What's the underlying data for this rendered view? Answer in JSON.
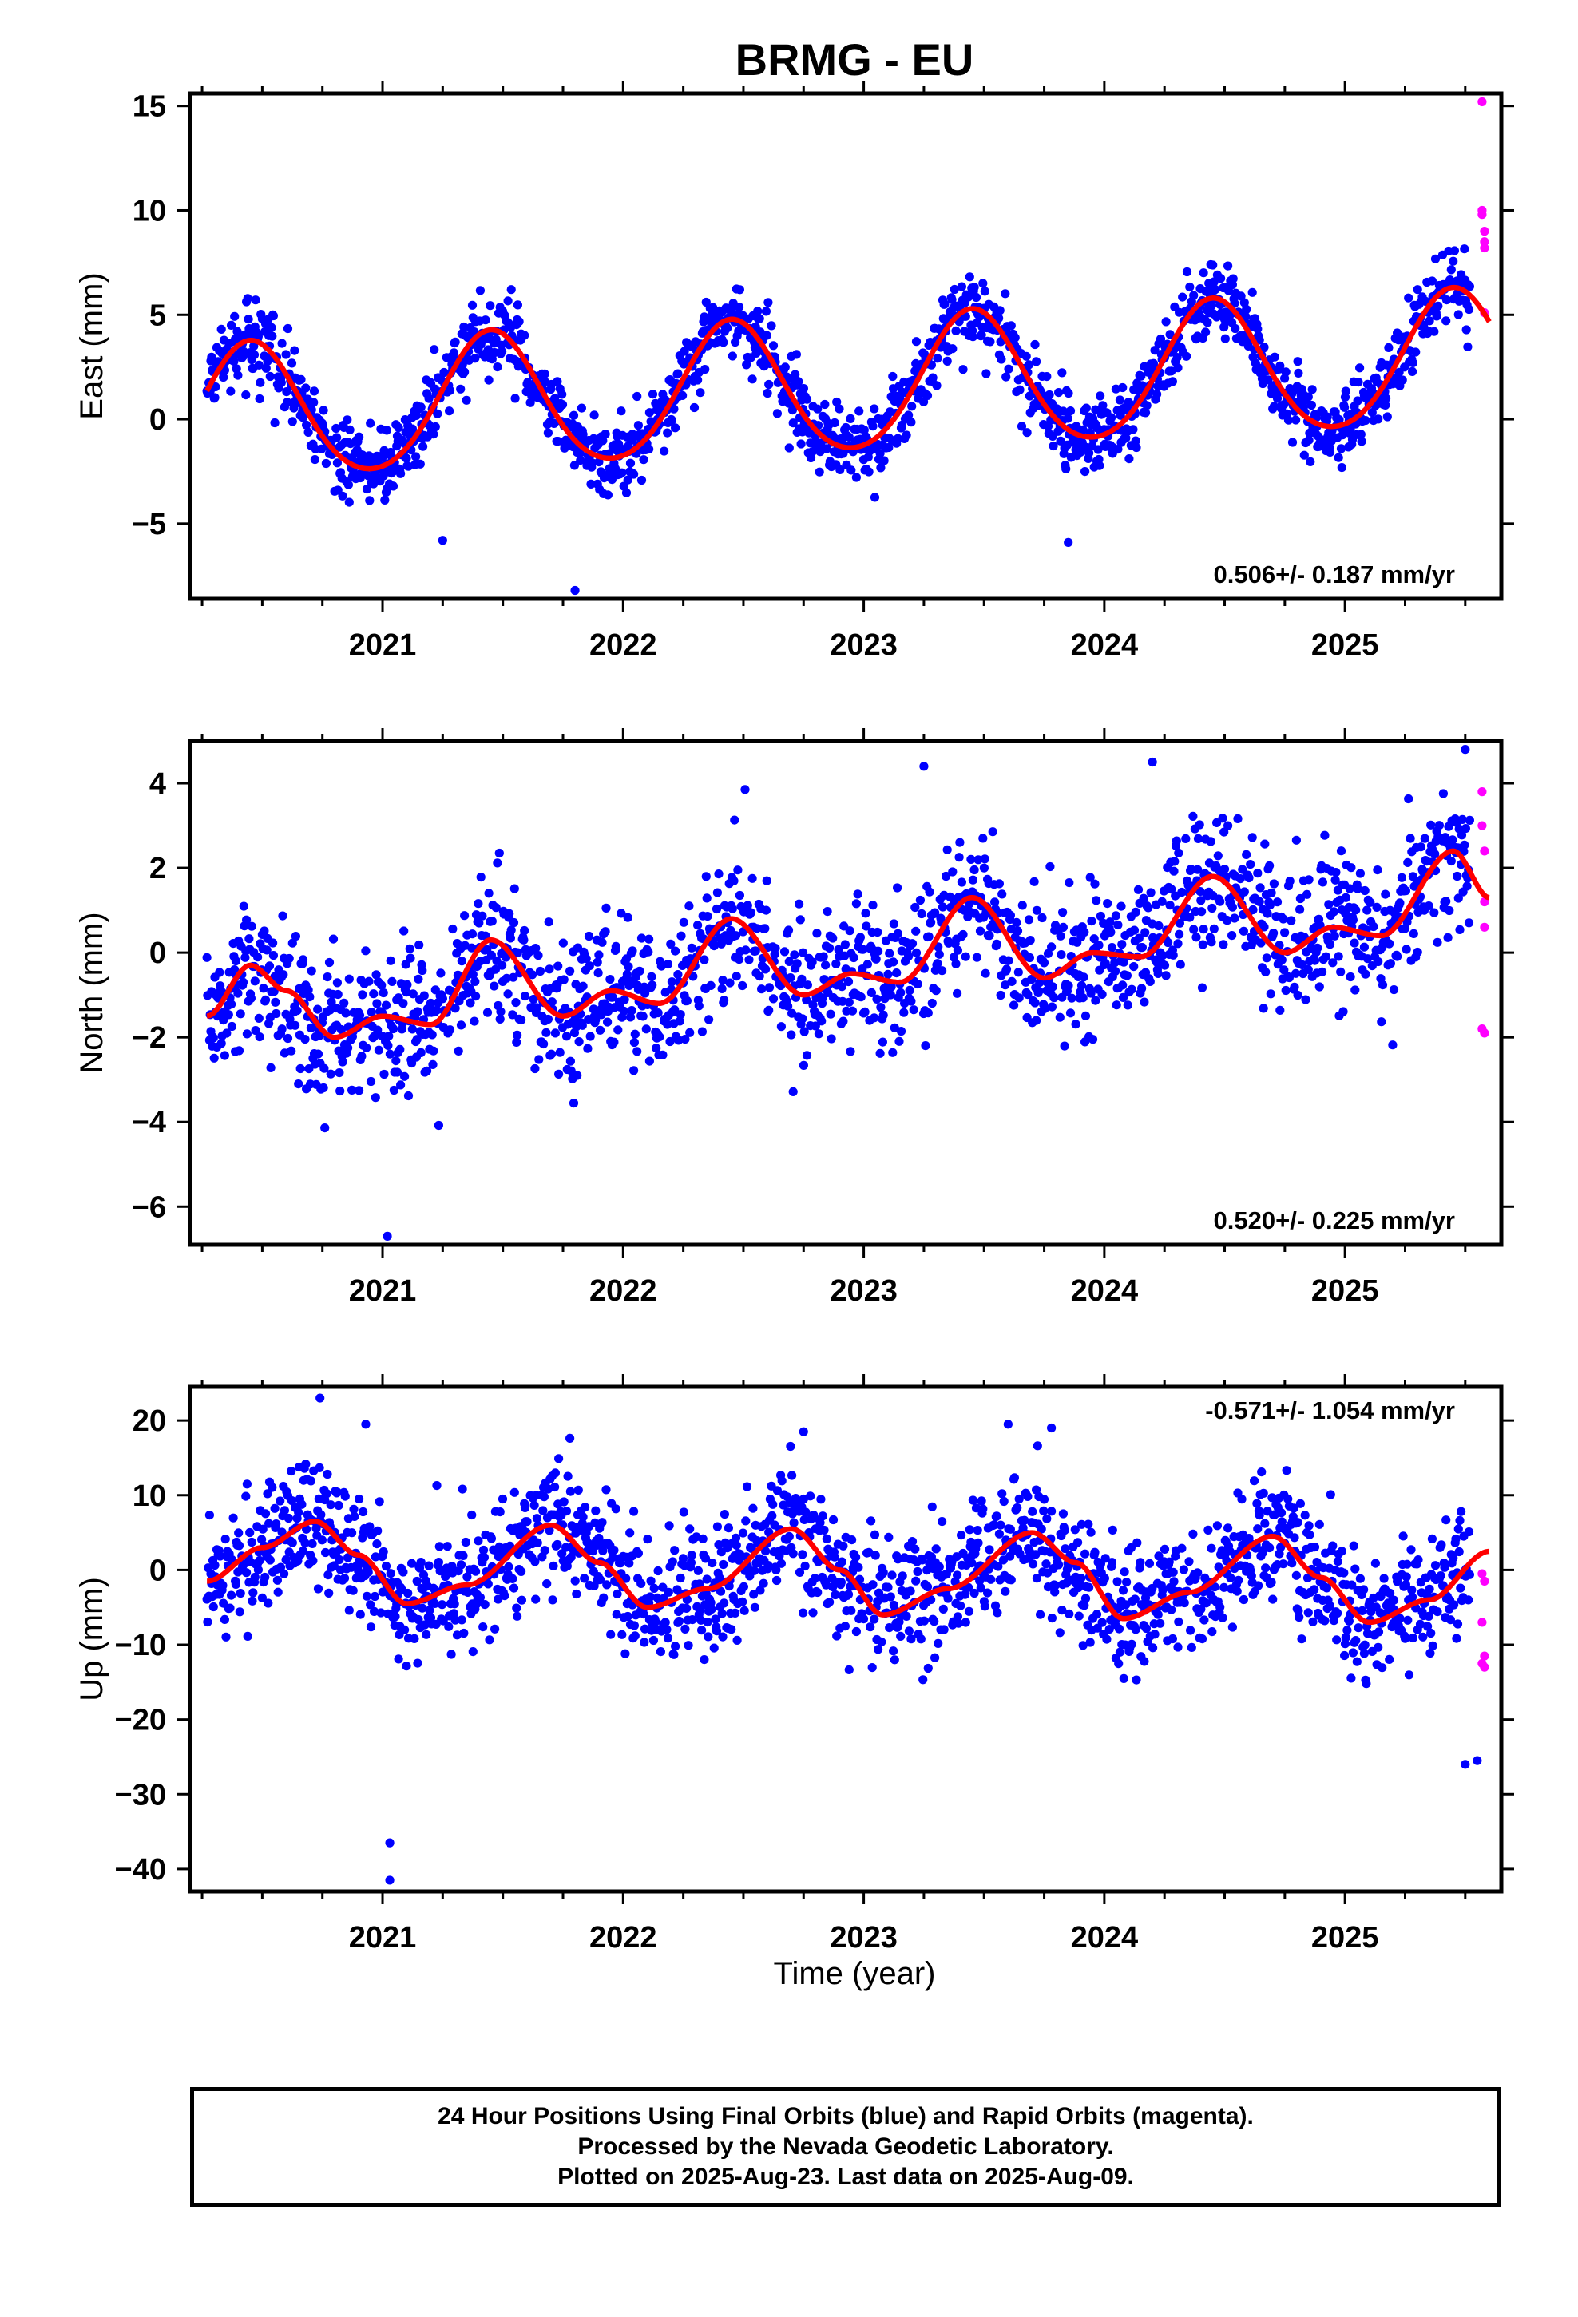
{
  "title": "BRMG - EU",
  "xlabel": "Time (year)",
  "caption": [
    "24 Hour Positions Using Final Orbits (blue) and Rapid Orbits (magenta).",
    "Processed by the Nevada Geodetic Laboratory.",
    "Plotted on 2025-Aug-23. Last data on 2025-Aug-09."
  ],
  "colors": {
    "final_orbits": "#0000ff",
    "rapid_orbits": "#ff00ff",
    "model_fit": "#ff0000",
    "frame": "#000000"
  },
  "chart_data": [
    {
      "type": "scatter",
      "name": "east-panel",
      "ylabel": "East (mm)",
      "rate_label": "0.506+/- 0.187 mm/yr",
      "xlim": [
        2020.2,
        2025.65
      ],
      "ylim": [
        -8.6,
        15.6
      ],
      "xticks": [
        2021,
        2022,
        2023,
        2024,
        2025
      ],
      "xtick_labels": [
        "2021",
        "2022",
        "2023",
        "2024",
        "2025"
      ],
      "yticks": [
        -5,
        0,
        5,
        10,
        15
      ],
      "ytick_labels": [
        "−5",
        "0",
        "5",
        "10",
        "15"
      ],
      "trend": {
        "rate": 0.506,
        "offset_at_2020_3": 0.2,
        "annual_amp": 3.2,
        "semiannual_amp": 0.3,
        "phase_peak": 2021.45
      },
      "scatter_sigma": 0.9,
      "data_start": 2020.27,
      "final_end": 2025.52,
      "fit_end": 2025.6,
      "rapid_points": [
        {
          "x": 2025.57,
          "y": 15.2
        },
        {
          "x": 2025.57,
          "y": 10.0
        },
        {
          "x": 2025.57,
          "y": 9.8
        },
        {
          "x": 2025.58,
          "y": 9.0
        },
        {
          "x": 2025.58,
          "y": 8.5
        },
        {
          "x": 2025.58,
          "y": 8.2
        },
        {
          "x": 2025.58,
          "y": 5.1
        }
      ],
      "outliers": [
        {
          "x": 2021.8,
          "y": -8.2
        },
        {
          "x": 2021.25,
          "y": -5.8
        },
        {
          "x": 2023.85,
          "y": -5.9
        }
      ]
    },
    {
      "type": "scatter",
      "name": "north-panel",
      "ylabel": "North (mm)",
      "rate_label": "0.520+/- 0.225 mm/yr",
      "xlim": [
        2020.2,
        2025.65
      ],
      "ylim": [
        -6.9,
        5.0
      ],
      "xticks": [
        2021,
        2022,
        2023,
        2024,
        2025
      ],
      "xtick_labels": [
        "2021",
        "2022",
        "2023",
        "2024",
        "2025"
      ],
      "yticks": [
        -6,
        -4,
        -2,
        0,
        2,
        4
      ],
      "ytick_labels": [
        "−6",
        "−4",
        "−2",
        "0",
        "2",
        "4"
      ],
      "fit_knots": [
        [
          2020.27,
          -1.5
        ],
        [
          2020.45,
          -0.3
        ],
        [
          2020.6,
          -0.9
        ],
        [
          2020.8,
          -2.0
        ],
        [
          2021.0,
          -1.5
        ],
        [
          2021.2,
          -1.7
        ],
        [
          2021.45,
          0.3
        ],
        [
          2021.75,
          -1.5
        ],
        [
          2021.95,
          -0.9
        ],
        [
          2022.15,
          -1.2
        ],
        [
          2022.45,
          0.8
        ],
        [
          2022.75,
          -1.0
        ],
        [
          2022.95,
          -0.5
        ],
        [
          2023.15,
          -0.7
        ],
        [
          2023.45,
          1.3
        ],
        [
          2023.75,
          -0.6
        ],
        [
          2023.95,
          0.0
        ],
        [
          2024.15,
          -0.1
        ],
        [
          2024.45,
          1.8
        ],
        [
          2024.75,
          0.0
        ],
        [
          2024.95,
          0.6
        ],
        [
          2025.15,
          0.4
        ],
        [
          2025.45,
          2.4
        ],
        [
          2025.6,
          1.3
        ]
      ],
      "scatter_sigma": 0.85,
      "data_start": 2020.27,
      "final_end": 2025.52,
      "fit_end": 2025.6,
      "rapid_points": [
        {
          "x": 2025.57,
          "y": 3.8
        },
        {
          "x": 2025.57,
          "y": 3.0
        },
        {
          "x": 2025.58,
          "y": 2.4
        },
        {
          "x": 2025.58,
          "y": 1.2
        },
        {
          "x": 2025.58,
          "y": 0.6
        },
        {
          "x": 2025.57,
          "y": -1.8
        },
        {
          "x": 2025.58,
          "y": -1.9
        }
      ],
      "outliers": [
        {
          "x": 2021.02,
          "y": -6.7
        },
        {
          "x": 2025.5,
          "y": 4.8
        },
        {
          "x": 2024.2,
          "y": 4.5
        },
        {
          "x": 2023.25,
          "y": 4.4
        }
      ]
    },
    {
      "type": "scatter",
      "name": "up-panel",
      "ylabel": "Up (mm)",
      "rate_label": "-0.571+/- 1.054 mm/yr",
      "xlim": [
        2020.2,
        2025.65
      ],
      "ylim": [
        -43,
        24.5
      ],
      "xticks": [
        2021,
        2022,
        2023,
        2024,
        2025
      ],
      "xtick_labels": [
        "2021",
        "2022",
        "2023",
        "2024",
        "2025"
      ],
      "yticks": [
        -40,
        -30,
        -20,
        -10,
        0,
        10,
        20
      ],
      "ytick_labels": [
        "−40",
        "−30",
        "−20",
        "−10",
        "0",
        "10",
        "20"
      ],
      "fit_knots": [
        [
          2020.27,
          -1.5
        ],
        [
          2020.5,
          3.0
        ],
        [
          2020.72,
          6.5
        ],
        [
          2020.9,
          2.0
        ],
        [
          2021.1,
          -4.5
        ],
        [
          2021.35,
          -2.0
        ],
        [
          2021.7,
          6.0
        ],
        [
          2021.9,
          1.0
        ],
        [
          2022.1,
          -5.0
        ],
        [
          2022.35,
          -2.5
        ],
        [
          2022.7,
          5.5
        ],
        [
          2022.9,
          0.0
        ],
        [
          2023.08,
          -6.0
        ],
        [
          2023.35,
          -2.5
        ],
        [
          2023.7,
          5.0
        ],
        [
          2023.88,
          1.0
        ],
        [
          2024.08,
          -6.5
        ],
        [
          2024.35,
          -3.0
        ],
        [
          2024.7,
          4.5
        ],
        [
          2024.9,
          -1.0
        ],
        [
          2025.1,
          -7.0
        ],
        [
          2025.35,
          -4.0
        ],
        [
          2025.6,
          2.5
        ]
      ],
      "scatter_sigma": 4.2,
      "data_start": 2020.27,
      "final_end": 2025.52,
      "fit_end": 2025.6,
      "rapid_points": [
        {
          "x": 2025.57,
          "y": -0.5
        },
        {
          "x": 2025.58,
          "y": -1.5
        },
        {
          "x": 2025.57,
          "y": -7.0
        },
        {
          "x": 2025.58,
          "y": -11.5
        },
        {
          "x": 2025.57,
          "y": -12.5
        },
        {
          "x": 2025.58,
          "y": -13.0
        }
      ],
      "outliers": [
        {
          "x": 2021.03,
          "y": -41.5
        },
        {
          "x": 2021.03,
          "y": -36.5
        },
        {
          "x": 2020.74,
          "y": 23.0
        },
        {
          "x": 2020.93,
          "y": 19.5
        },
        {
          "x": 2025.5,
          "y": -26.0
        },
        {
          "x": 2025.55,
          "y": -25.5
        },
        {
          "x": 2023.6,
          "y": 19.5
        },
        {
          "x": 2023.78,
          "y": 19.0
        },
        {
          "x": 2022.75,
          "y": 18.5
        }
      ]
    }
  ]
}
